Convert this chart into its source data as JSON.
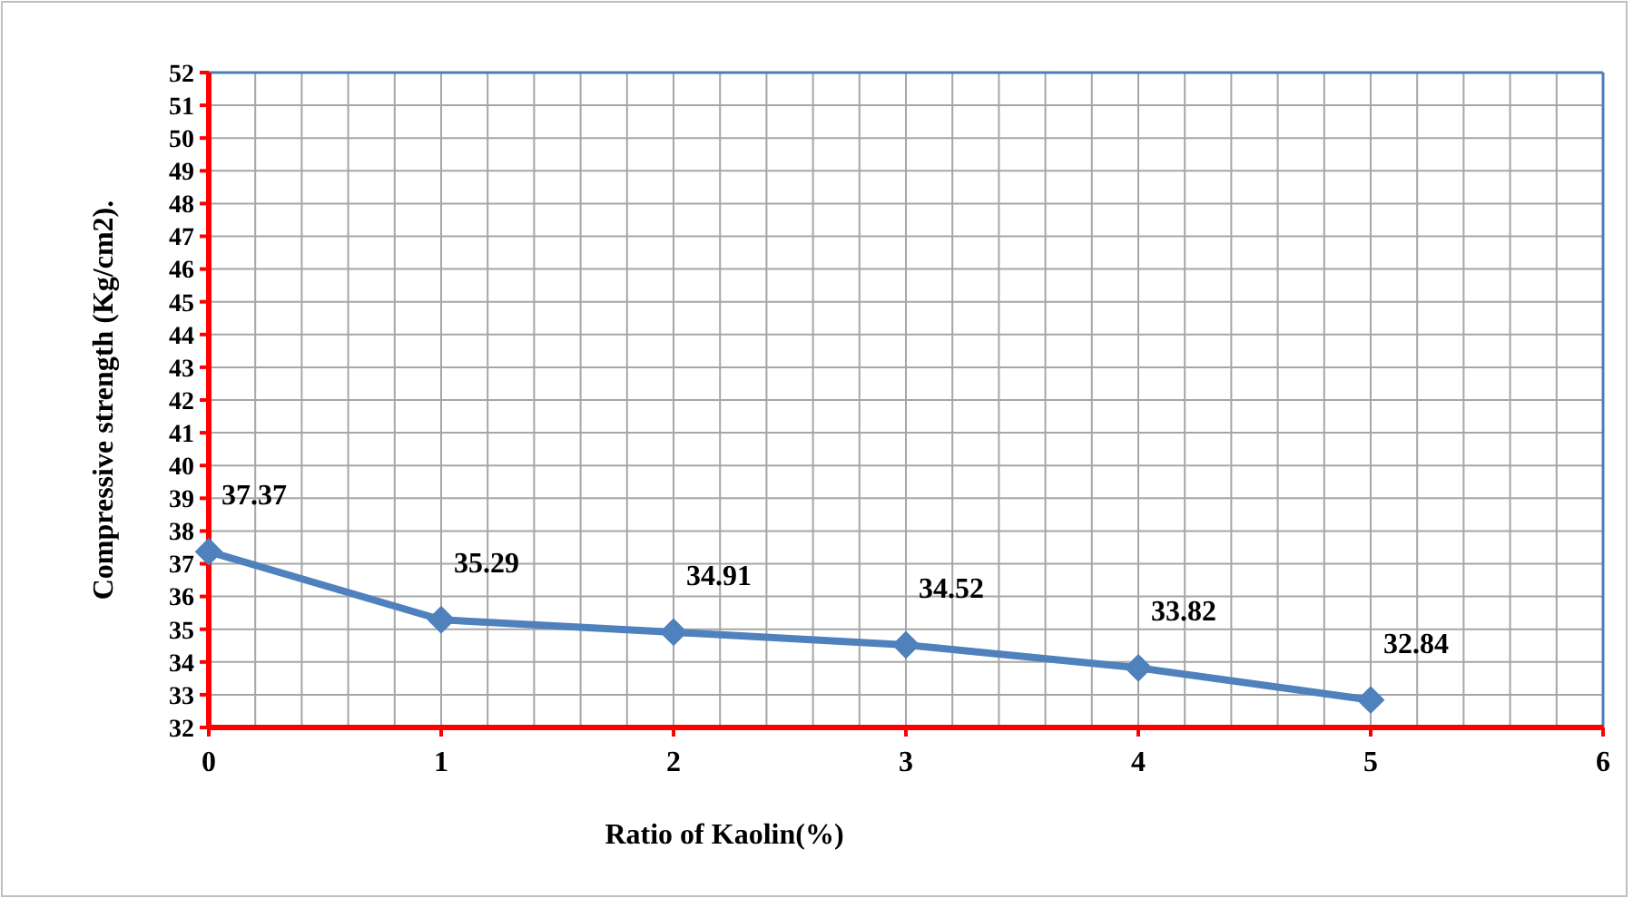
{
  "chart_data": {
    "type": "line",
    "xlabel": "Ratio of Kaolin(%)",
    "ylabel": "Compressive strength (Kg/cm2).",
    "x": [
      0,
      1,
      2,
      3,
      4,
      5
    ],
    "series": [
      {
        "color": "#4f81bd",
        "values": [
          37.37,
          35.29,
          34.91,
          34.52,
          33.82,
          32.84
        ]
      }
    ],
    "xlim": [
      0,
      6
    ],
    "xticks": [
      0,
      {
        "value": 0.2,
        "label": null
      },
      {
        "value": 0.4,
        "label": null
      },
      {
        "value": 0.6,
        "label": null
      },
      {
        "value": 0.8,
        "label": null
      },
      1,
      {
        "value": 1.2,
        "label": null
      },
      {
        "value": 1.4,
        "label": null
      },
      {
        "value": 1.6,
        "label": null
      },
      {
        "value": 1.8,
        "label": null
      },
      2,
      {
        "value": 2.2,
        "label": null
      },
      {
        "value": 2.4,
        "label": null
      },
      {
        "value": 2.6,
        "label": null
      },
      {
        "value": 2.8,
        "label": null
      },
      3,
      {
        "value": 3.2,
        "label": null
      },
      {
        "value": 3.4,
        "label": null
      },
      {
        "value": 3.6,
        "label": null
      },
      {
        "value": 3.8,
        "label": null
      },
      4,
      {
        "value": 4.2,
        "label": null
      },
      {
        "value": 4.4,
        "label": null
      },
      {
        "value": 4.6,
        "label": null
      },
      {
        "value": 4.8,
        "label": null
      },
      5,
      {
        "value": 5.2,
        "label": null
      },
      {
        "value": 5.4,
        "label": null
      },
      {
        "value": 5.6,
        "label": null
      },
      {
        "value": 5.8,
        "label": null
      },
      6
    ],
    "ylim": [
      32,
      52
    ],
    "yticks": [
      32,
      33,
      34,
      35,
      36,
      37,
      38,
      39,
      40,
      41,
      42,
      43,
      44,
      45,
      46,
      47,
      48,
      49,
      50,
      51,
      52
    ],
    "grid": true,
    "marker": "diamond",
    "line_style": "solid",
    "data_labels": true
  }
}
